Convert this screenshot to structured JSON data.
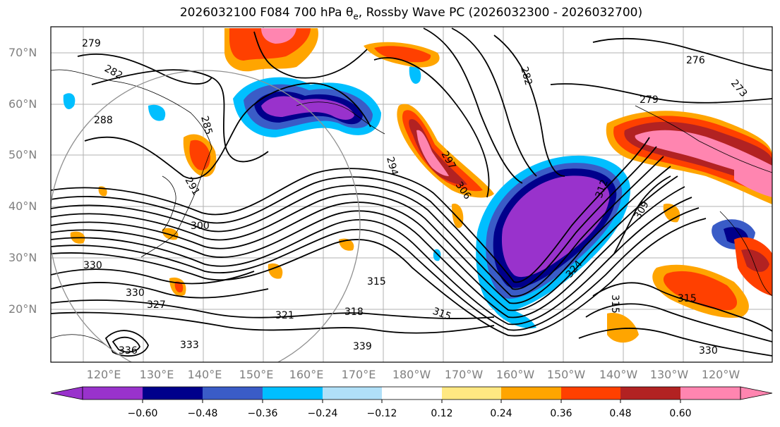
{
  "title": {
    "prefix": "2026032100 F084 700 hPa θ",
    "sub": "e",
    "suffix": ", Rossby Wave PC (2026032300 - 2026032700)"
  },
  "lat_labels": [
    "70°N",
    "60°N",
    "50°N",
    "40°N",
    "30°N",
    "20°N"
  ],
  "lon_labels": [
    "120°E",
    "130°E",
    "140°E",
    "150°E",
    "160°E",
    "170°E",
    "180°W",
    "170°W",
    "160°W",
    "150°W",
    "140°W",
    "130°W",
    "120°W"
  ],
  "contour_labels": [
    "279",
    "282",
    "285",
    "288",
    "291",
    "294",
    "297",
    "300",
    "306",
    "309",
    "312",
    "315",
    "318",
    "321",
    "324",
    "327",
    "330",
    "333",
    "336",
    "339",
    "276",
    "273"
  ],
  "colorbar": {
    "tick_labels": [
      "−0.60",
      "−0.48",
      "−0.36",
      "−0.24",
      "−0.12",
      "0.12",
      "0.24",
      "0.36",
      "0.48",
      "0.60"
    ],
    "colors": [
      "#9932cc",
      "#00008b",
      "#3a5cc7",
      "#00bfff",
      "#b0e0f8",
      "#ffffff",
      "#ffe882",
      "#ffa500",
      "#ff4000",
      "#b22222",
      "#ff85b0"
    ]
  }
}
